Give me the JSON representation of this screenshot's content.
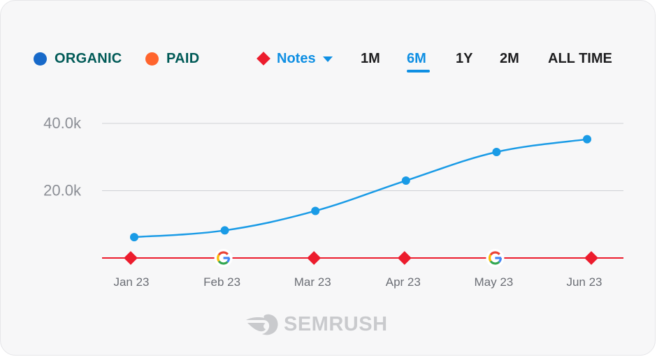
{
  "legend": {
    "organic": {
      "label": "ORGANIC",
      "color": "#1769c9",
      "text_color": "#005a57"
    },
    "paid": {
      "label": "PAID",
      "color": "#ff642d",
      "text_color": "#005a57"
    }
  },
  "toolbar": {
    "notes_label": "Notes",
    "notes_color": "#ec1c2d",
    "ranges": [
      "1M",
      "6M",
      "1Y",
      "2M",
      "ALL TIME"
    ],
    "active_range": "6M"
  },
  "watermark": {
    "brand": "SEMRUSH"
  },
  "chart_data": {
    "type": "line",
    "title": "",
    "xlabel": "",
    "ylabel": "",
    "categories": [
      "Jan 23",
      "Feb 23",
      "Mar 23",
      "Apr 23",
      "May 23",
      "Jun 23"
    ],
    "ylim": [
      0,
      40000
    ],
    "y_ticks": [
      {
        "value": 20000,
        "label": "20.0k"
      },
      {
        "value": 40000,
        "label": "40.0k"
      }
    ],
    "grid": true,
    "series": [
      {
        "name": "ORGANIC",
        "color": "#1a9be6",
        "values": [
          6200,
          8200,
          14000,
          23000,
          31500,
          35300
        ]
      }
    ],
    "notes": [
      {
        "category": "Jan 23",
        "type": "note"
      },
      {
        "category": "Feb 23",
        "type": "google"
      },
      {
        "category": "Mar 23",
        "type": "note"
      },
      {
        "category": "Apr 23",
        "type": "note"
      },
      {
        "category": "May 23",
        "type": "google"
      },
      {
        "category": "Jun 23",
        "type": "note"
      }
    ]
  }
}
